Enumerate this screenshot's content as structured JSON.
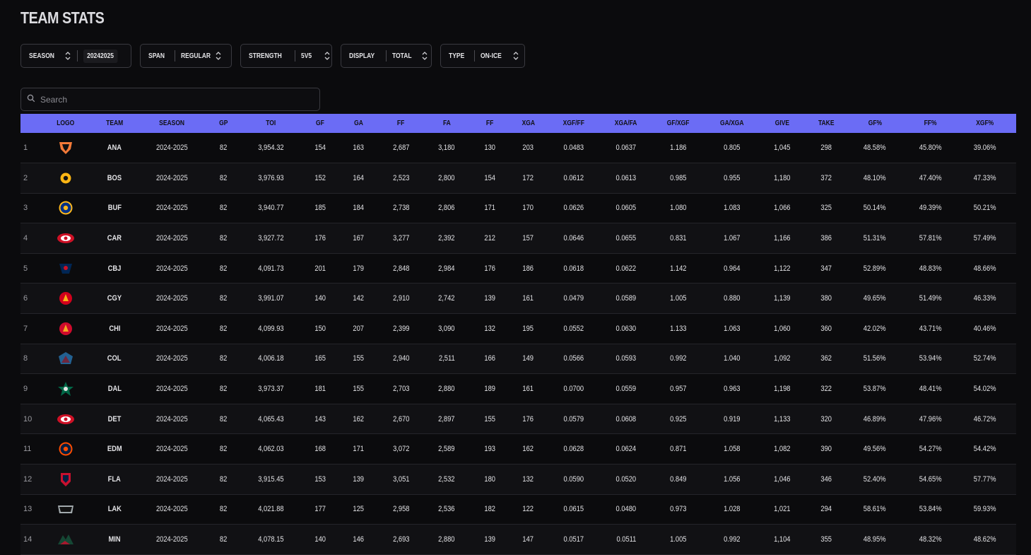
{
  "title": "TEAM STATS",
  "filters": [
    {
      "key": "season",
      "label": "SEASON",
      "value": "20242025",
      "value_position": "after-chevron"
    },
    {
      "key": "span",
      "label": "SPAN",
      "value": "REGULAR"
    },
    {
      "key": "strength",
      "label": "STRENGTH",
      "value": "5V5"
    },
    {
      "key": "display",
      "label": "DISPLAY",
      "value": "TOTAL"
    },
    {
      "key": "type",
      "label": "TYPE",
      "value": "ON-ICE"
    }
  ],
  "search": {
    "placeholder": "Search",
    "value": ""
  },
  "table": {
    "columns": [
      "",
      "LOGO",
      "TEAM",
      "SEASON",
      "GP",
      "TOI",
      "GF",
      "GA",
      "FF",
      "FA",
      "FF",
      "XGA",
      "XGF/FF",
      "XGA/FA",
      "GF/XGF",
      "GA/XGA",
      "GIVE",
      "TAKE",
      "GF%",
      "FF%",
      "XGF%"
    ],
    "rows": [
      {
        "rank": "1",
        "logo_icon": "ducks-logo-icon",
        "team": "ANA",
        "season": "2024-2025",
        "gp": "82",
        "toi": "3,954.32",
        "gf": "154",
        "ga": "163",
        "ff": "2,687",
        "fa": "3,180",
        "ff2": "130",
        "xga": "203",
        "xgf_ff": "0.0483",
        "xga_fa": "0.0637",
        "gf_xgf": "1.186",
        "ga_xga": "0.805",
        "give": "1,045",
        "take": "298",
        "gf_pct": "48.58%",
        "ff_pct": "45.80%",
        "xgf_pct": "39.06%",
        "colors": [
          "#111111",
          "#f47a38"
        ]
      },
      {
        "rank": "2",
        "logo_icon": "bruins-logo-icon",
        "team": "BOS",
        "season": "2024-2025",
        "gp": "82",
        "toi": "3,976.93",
        "gf": "152",
        "ga": "164",
        "ff": "2,523",
        "fa": "2,800",
        "ff2": "154",
        "xga": "172",
        "xgf_ff": "0.0612",
        "xga_fa": "0.0613",
        "gf_xgf": "0.985",
        "ga_xga": "0.955",
        "give": "1,180",
        "take": "372",
        "gf_pct": "48.10%",
        "ff_pct": "47.40%",
        "xgf_pct": "47.33%",
        "colors": [
          "#fcb514",
          "#111111"
        ]
      },
      {
        "rank": "3",
        "logo_icon": "sabres-logo-icon",
        "team": "BUF",
        "season": "2024-2025",
        "gp": "82",
        "toi": "3,940.77",
        "gf": "185",
        "ga": "184",
        "ff": "2,738",
        "fa": "2,806",
        "ff2": "171",
        "xga": "170",
        "xgf_ff": "0.0626",
        "xga_fa": "0.0605",
        "gf_xgf": "1.080",
        "ga_xga": "1.083",
        "give": "1,066",
        "take": "325",
        "gf_pct": "50.14%",
        "ff_pct": "49.39%",
        "xgf_pct": "50.21%",
        "colors": [
          "#003087",
          "#ffb81c"
        ]
      },
      {
        "rank": "4",
        "logo_icon": "hurricanes-logo-icon",
        "team": "CAR",
        "season": "2024-2025",
        "gp": "82",
        "toi": "3,927.72",
        "gf": "176",
        "ga": "167",
        "ff": "3,277",
        "fa": "2,392",
        "ff2": "212",
        "xga": "157",
        "xgf_ff": "0.0646",
        "xga_fa": "0.0655",
        "gf_xgf": "0.831",
        "ga_xga": "1.067",
        "give": "1,166",
        "take": "386",
        "gf_pct": "51.31%",
        "ff_pct": "57.81%",
        "xgf_pct": "57.49%",
        "colors": [
          "#ce1126",
          "#ffffff"
        ]
      },
      {
        "rank": "5",
        "logo_icon": "blue-jackets-logo-icon",
        "team": "CBJ",
        "season": "2024-2025",
        "gp": "82",
        "toi": "4,091.73",
        "gf": "201",
        "ga": "179",
        "ff": "2,848",
        "fa": "2,984",
        "ff2": "176",
        "xga": "186",
        "xgf_ff": "0.0618",
        "xga_fa": "0.0622",
        "gf_xgf": "1.142",
        "ga_xga": "0.964",
        "give": "1,122",
        "take": "347",
        "gf_pct": "52.89%",
        "ff_pct": "48.83%",
        "xgf_pct": "48.66%",
        "colors": [
          "#002654",
          "#ce1126"
        ]
      },
      {
        "rank": "6",
        "logo_icon": "flames-logo-icon",
        "team": "CGY",
        "season": "2024-2025",
        "gp": "82",
        "toi": "3,991.07",
        "gf": "140",
        "ga": "142",
        "ff": "2,910",
        "fa": "2,742",
        "ff2": "139",
        "xga": "161",
        "xgf_ff": "0.0479",
        "xga_fa": "0.0589",
        "gf_xgf": "1.005",
        "ga_xga": "0.880",
        "give": "1,139",
        "take": "380",
        "gf_pct": "49.65%",
        "ff_pct": "51.49%",
        "xgf_pct": "46.33%",
        "colors": [
          "#d2001c",
          "#faaf19"
        ]
      },
      {
        "rank": "7",
        "logo_icon": "blackhawks-logo-icon",
        "team": "CHI",
        "season": "2024-2025",
        "gp": "82",
        "toi": "4,099.93",
        "gf": "150",
        "ga": "207",
        "ff": "2,399",
        "fa": "3,090",
        "ff2": "132",
        "xga": "195",
        "xgf_ff": "0.0552",
        "xga_fa": "0.0630",
        "gf_xgf": "1.133",
        "ga_xga": "1.063",
        "give": "1,060",
        "take": "360",
        "gf_pct": "42.02%",
        "ff_pct": "43.71%",
        "xgf_pct": "40.46%",
        "colors": [
          "#cf0a2c",
          "#f5a623"
        ]
      },
      {
        "rank": "8",
        "logo_icon": "avalanche-logo-icon",
        "team": "COL",
        "season": "2024-2025",
        "gp": "82",
        "toi": "4,006.18",
        "gf": "165",
        "ga": "155",
        "ff": "2,940",
        "fa": "2,511",
        "ff2": "166",
        "xga": "149",
        "xgf_ff": "0.0566",
        "xga_fa": "0.0593",
        "gf_xgf": "0.992",
        "ga_xga": "1.040",
        "give": "1,092",
        "take": "362",
        "gf_pct": "51.56%",
        "ff_pct": "53.94%",
        "xgf_pct": "52.74%",
        "colors": [
          "#6f263d",
          "#236192"
        ]
      },
      {
        "rank": "9",
        "logo_icon": "stars-logo-icon",
        "team": "DAL",
        "season": "2024-2025",
        "gp": "82",
        "toi": "3,973.37",
        "gf": "181",
        "ga": "155",
        "ff": "2,703",
        "fa": "2,880",
        "ff2": "189",
        "xga": "161",
        "xgf_ff": "0.0700",
        "xga_fa": "0.0559",
        "gf_xgf": "0.957",
        "ga_xga": "0.963",
        "give": "1,198",
        "take": "322",
        "gf_pct": "53.87%",
        "ff_pct": "48.41%",
        "xgf_pct": "54.02%",
        "colors": [
          "#006847",
          "#e5e5e5"
        ]
      },
      {
        "rank": "10",
        "logo_icon": "red-wings-logo-icon",
        "team": "DET",
        "season": "2024-2025",
        "gp": "82",
        "toi": "4,065.43",
        "gf": "143",
        "ga": "162",
        "ff": "2,670",
        "fa": "2,897",
        "ff2": "155",
        "xga": "176",
        "xgf_ff": "0.0579",
        "xga_fa": "0.0608",
        "gf_xgf": "0.925",
        "ga_xga": "0.919",
        "give": "1,133",
        "take": "320",
        "gf_pct": "46.89%",
        "ff_pct": "47.96%",
        "xgf_pct": "46.72%",
        "colors": [
          "#ce1126",
          "#ffffff"
        ]
      },
      {
        "rank": "11",
        "logo_icon": "oilers-logo-icon",
        "team": "EDM",
        "season": "2024-2025",
        "gp": "82",
        "toi": "4,062.03",
        "gf": "168",
        "ga": "171",
        "ff": "3,072",
        "fa": "2,589",
        "ff2": "193",
        "xga": "162",
        "xgf_ff": "0.0628",
        "xga_fa": "0.0624",
        "gf_xgf": "0.871",
        "ga_xga": "1.058",
        "give": "1,082",
        "take": "390",
        "gf_pct": "49.56%",
        "ff_pct": "54.27%",
        "xgf_pct": "54.42%",
        "colors": [
          "#041e42",
          "#ff4c00"
        ]
      },
      {
        "rank": "12",
        "logo_icon": "panthers-logo-icon",
        "team": "FLA",
        "season": "2024-2025",
        "gp": "82",
        "toi": "3,915.45",
        "gf": "153",
        "ga": "139",
        "ff": "3,051",
        "fa": "2,532",
        "ff2": "180",
        "xga": "132",
        "xgf_ff": "0.0590",
        "xga_fa": "0.0520",
        "gf_xgf": "0.849",
        "ga_xga": "1.056",
        "give": "1,046",
        "take": "346",
        "gf_pct": "52.40%",
        "ff_pct": "54.65%",
        "xgf_pct": "57.77%",
        "colors": [
          "#c8102e",
          "#041e42"
        ]
      },
      {
        "rank": "13",
        "logo_icon": "kings-logo-icon",
        "team": "LAK",
        "season": "2024-2025",
        "gp": "82",
        "toi": "4,021.88",
        "gf": "177",
        "ga": "125",
        "ff": "2,958",
        "fa": "2,536",
        "ff2": "182",
        "xga": "122",
        "xgf_ff": "0.0615",
        "xga_fa": "0.0480",
        "gf_xgf": "0.973",
        "ga_xga": "1.028",
        "give": "1,021",
        "take": "294",
        "gf_pct": "58.61%",
        "ff_pct": "53.84%",
        "xgf_pct": "59.93%",
        "colors": [
          "#111111",
          "#a2aaad"
        ]
      },
      {
        "rank": "14",
        "logo_icon": "wild-logo-icon",
        "team": "MIN",
        "season": "2024-2025",
        "gp": "82",
        "toi": "4,078.15",
        "gf": "140",
        "ga": "146",
        "ff": "2,693",
        "fa": "2,880",
        "ff2": "139",
        "xga": "147",
        "xgf_ff": "0.0517",
        "xga_fa": "0.0511",
        "gf_xgf": "1.005",
        "ga_xga": "0.992",
        "give": "1,104",
        "take": "355",
        "gf_pct": "48.95%",
        "ff_pct": "48.32%",
        "xgf_pct": "48.62%",
        "colors": [
          "#154734",
          "#a6192e"
        ]
      }
    ]
  },
  "theme": {
    "background": "#0b0b0d",
    "header_accent": "#6b6cf5",
    "border": "#3a3a40"
  }
}
